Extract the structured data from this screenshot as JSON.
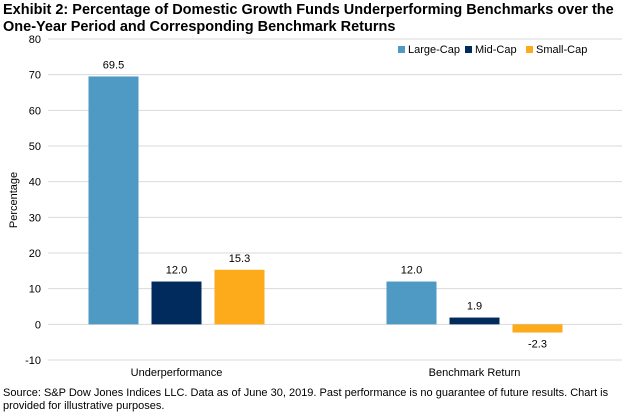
{
  "chart_data": {
    "type": "bar",
    "title": "Exhibit 2: Percentage of Domestic Growth Funds Underperforming Benchmarks over the One-Year Period and Corresponding Benchmark Returns",
    "xlabel": "",
    "ylabel": "Percentage",
    "ylim": [
      -10,
      80
    ],
    "yticks": [
      80,
      70,
      60,
      50,
      40,
      30,
      20,
      10,
      0,
      -10
    ],
    "grid": true,
    "legend_position": "top-right",
    "categories": [
      "Underperformance",
      "Benchmark Return"
    ],
    "series": [
      {
        "name": "Large-Cap",
        "color": "#4F9AC4",
        "values": [
          69.5,
          12.0
        ],
        "labels": [
          "69.5",
          "12.0"
        ]
      },
      {
        "name": "Mid-Cap",
        "color": "#002B5C",
        "values": [
          12.0,
          1.9
        ],
        "labels": [
          "12.0",
          "1.9"
        ]
      },
      {
        "name": "Small-Cap",
        "color": "#FDAB1A",
        "values": [
          15.3,
          -2.3
        ],
        "labels": [
          "15.3",
          "-2.3"
        ]
      }
    ],
    "source": "Source: S&P Dow Jones Indices LLC. Data as of June 30, 2019. Past performance is no guarantee of future results. Chart is provided for illustrative purposes."
  }
}
